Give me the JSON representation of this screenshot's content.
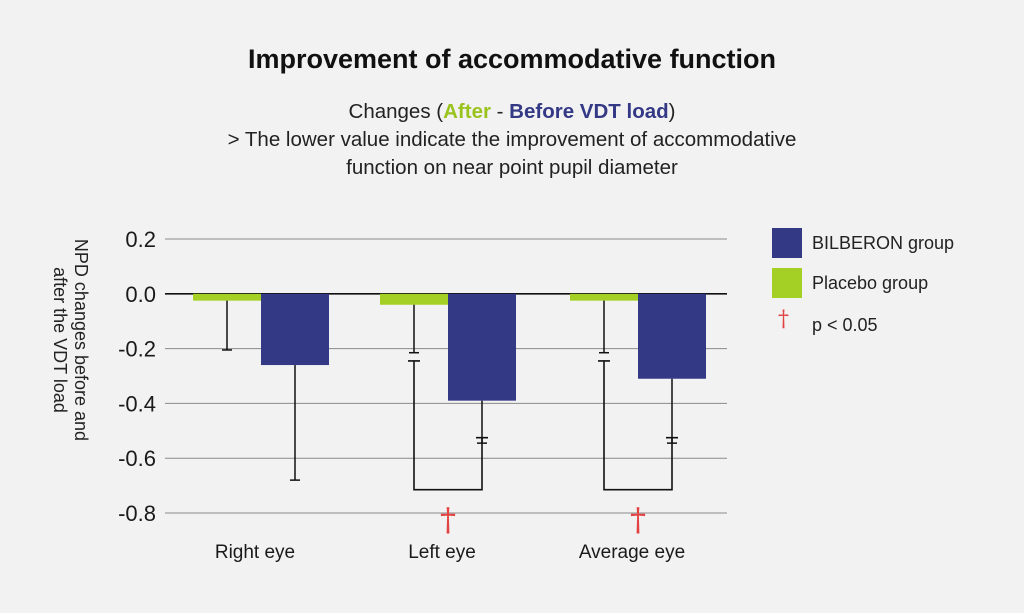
{
  "title": "Improvement of accommodative function",
  "subtitle": {
    "prefix": "Changes (",
    "after": "After",
    "sep": " - ",
    "before": "Before VDT load",
    "suffix": ")",
    "line2": "> The lower value indicate the improvement of accommodative",
    "line3": "function on near point pupil diameter"
  },
  "colors": {
    "bilberon": "#343986",
    "placebo": "#a4cf25",
    "significance": "#e34242",
    "grid": "#8a8a8a"
  },
  "legend": {
    "bilberon": "BILBERON group",
    "placebo": "Placebo group",
    "significance_symbol": "†",
    "significance_label": "p < 0.05"
  },
  "chart_data": {
    "type": "bar",
    "ylabel": "NPD changes before and after the VDT load",
    "ylim": [
      -0.8,
      0.2
    ],
    "yticks": [
      "0.2",
      "0.0",
      "-0.2",
      "-0.4",
      "-0.6",
      "-0.8"
    ],
    "ytick_values": [
      0.2,
      0.0,
      -0.2,
      -0.4,
      -0.6,
      -0.8
    ],
    "grid": true,
    "legend_position": "right",
    "categories": [
      "Right eye",
      "Left eye",
      "Average eye"
    ],
    "series": [
      {
        "name": "Placebo group",
        "values": [
          -0.025,
          -0.04,
          -0.025
        ],
        "error_low": [
          -0.205,
          -0.215,
          -0.215
        ]
      },
      {
        "name": "BILBERON group",
        "values": [
          -0.26,
          -0.39,
          -0.31
        ],
        "error_low": [
          -0.68,
          -0.545,
          -0.545
        ]
      }
    ],
    "significance": [
      {
        "category": "Left eye",
        "marker": "†",
        "bracket_y": -0.715
      },
      {
        "category": "Average eye",
        "marker": "†",
        "bracket_y": -0.715
      }
    ]
  }
}
